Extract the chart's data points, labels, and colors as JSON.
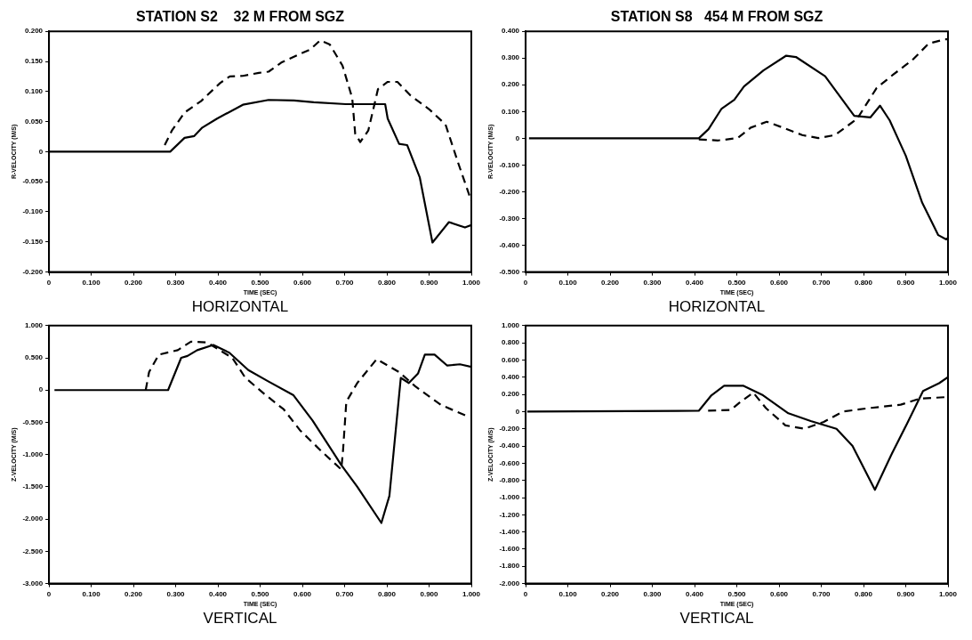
{
  "chart_data": [
    {
      "type": "line",
      "title": "STATION S2    32 M FROM SGZ",
      "subtitle": "HORIZONTAL",
      "xlabel": "TIME (SEC)",
      "ylabel": "R-VELOCITY (M/S)",
      "xlim": [
        0,
        1
      ],
      "xticks": [
        {
          "value": 0,
          "label": "0"
        },
        {
          "value": 0.1,
          "label": "0.100"
        },
        {
          "value": 0.2,
          "label": "0.200"
        },
        {
          "value": 0.3,
          "label": "0.300"
        },
        {
          "value": 0.4,
          "label": "0.400"
        },
        {
          "value": 0.5,
          "label": "0.500"
        },
        {
          "value": 0.6,
          "label": "0.600"
        },
        {
          "value": 0.7,
          "label": "0.700"
        },
        {
          "value": 0.8,
          "label": "0.800"
        },
        {
          "value": 0.9,
          "label": "0.900"
        },
        {
          "value": 1,
          "label": "1.000"
        }
      ],
      "ylim": [
        -0.2,
        0.2
      ],
      "yticks": [
        {
          "value": -0.2,
          "label": "-0.200"
        },
        {
          "value": -0.15,
          "label": "-0.150"
        },
        {
          "value": -0.1,
          "label": "-0.100"
        },
        {
          "value": -0.05,
          "label": "-0.050"
        },
        {
          "value": 0,
          "label": "0"
        },
        {
          "value": 0.05,
          "label": "0.050"
        },
        {
          "value": 0.1,
          "label": "0.100"
        },
        {
          "value": 0.15,
          "label": "0.150"
        },
        {
          "value": 0.2,
          "label": "0.200"
        }
      ],
      "series": [
        {
          "color": "#000000",
          "line_style": "solid",
          "x": [
            0,
            0.26,
            0.287,
            0.321,
            0.344,
            0.363,
            0.398,
            0.459,
            0.52,
            0.58,
            0.627,
            0.703,
            0.796,
            0.802,
            0.829,
            0.848,
            0.878,
            0.908,
            0.947,
            0.985,
            1
          ],
          "values": [
            0,
            0,
            0,
            0.023,
            0.026,
            0.04,
            0.055,
            0.078,
            0.086,
            0.085,
            0.082,
            0.079,
            0.079,
            0.055,
            0.013,
            0.011,
            -0.043,
            -0.151,
            -0.117,
            -0.126,
            -0.122
          ]
        },
        {
          "color": "#000000",
          "line_style": "dashed",
          "x": [
            0.274,
            0.291,
            0.321,
            0.36,
            0.405,
            0.428,
            0.459,
            0.497,
            0.52,
            0.55,
            0.596,
            0.619,
            0.642,
            0.665,
            0.695,
            0.718,
            0.725,
            0.737,
            0.756,
            0.779,
            0.802,
            0.825,
            0.855,
            0.901,
            0.939,
            0.969,
            1
          ],
          "values": [
            0.011,
            0.035,
            0.065,
            0.084,
            0.114,
            0.125,
            0.126,
            0.131,
            0.133,
            0.148,
            0.163,
            0.17,
            0.185,
            0.178,
            0.143,
            0.089,
            0.03,
            0.016,
            0.035,
            0.104,
            0.116,
            0.116,
            0.094,
            0.07,
            0.045,
            -0.019,
            -0.082
          ]
        }
      ]
    },
    {
      "type": "line",
      "title": "STATION S8   454 M FROM SGZ",
      "subtitle": "HORIZONTAL",
      "xlabel": "TIME (SEC)",
      "ylabel": "R-VELOCITY (M/S)",
      "xlim": [
        0,
        1
      ],
      "xticks": [
        {
          "value": 0,
          "label": "0"
        },
        {
          "value": 0.1,
          "label": "0.100"
        },
        {
          "value": 0.2,
          "label": "0.200"
        },
        {
          "value": 0.3,
          "label": "0.300"
        },
        {
          "value": 0.4,
          "label": "0.400"
        },
        {
          "value": 0.5,
          "label": "0.500"
        },
        {
          "value": 0.6,
          "label": "0.600"
        },
        {
          "value": 0.7,
          "label": "0.700"
        },
        {
          "value": 0.8,
          "label": "0.800"
        },
        {
          "value": 0.9,
          "label": "0.900"
        },
        {
          "value": 1,
          "label": "1.000"
        }
      ],
      "ylim": [
        -0.5,
        0.4
      ],
      "yticks": [
        {
          "value": -0.5,
          "label": "-0.500"
        },
        {
          "value": -0.4,
          "label": "-0.400"
        },
        {
          "value": -0.3,
          "label": "-0.300"
        },
        {
          "value": -0.2,
          "label": "-0.200"
        },
        {
          "value": -0.1,
          "label": "-0.100"
        },
        {
          "value": 0,
          "label": "0"
        },
        {
          "value": 0.1,
          "label": "0.100"
        },
        {
          "value": 0.2,
          "label": "0.200"
        },
        {
          "value": 0.3,
          "label": "0.300"
        },
        {
          "value": 0.4,
          "label": "0.400"
        }
      ],
      "series": [
        {
          "color": "#000000",
          "line_style": "solid",
          "x": [
            0.008,
            0.41,
            0.433,
            0.464,
            0.494,
            0.517,
            0.563,
            0.617,
            0.64,
            0.709,
            0.778,
            0.816,
            0.839,
            0.862,
            0.9,
            0.939,
            0.977,
            0.996,
            1
          ],
          "values": [
            0,
            0,
            0.034,
            0.111,
            0.144,
            0.194,
            0.254,
            0.309,
            0.304,
            0.232,
            0.084,
            0.078,
            0.122,
            0.067,
            -0.065,
            -0.241,
            -0.362,
            -0.378,
            -0.373
          ]
        },
        {
          "color": "#000000",
          "line_style": "dashed",
          "x": [
            0.41,
            0.456,
            0.502,
            0.533,
            0.571,
            0.609,
            0.655,
            0.693,
            0.732,
            0.785,
            0.831,
            0.87,
            0.916,
            0.954,
            0.992,
            1
          ],
          "values": [
            -0.004,
            -0.008,
            0.001,
            0.04,
            0.062,
            0.04,
            0.012,
            0.001,
            0.012,
            0.073,
            0.188,
            0.238,
            0.293,
            0.354,
            0.37,
            0.37
          ]
        }
      ]
    },
    {
      "type": "line",
      "subtitle": "VERTICAL",
      "xlabel": "TIME (SEC)",
      "ylabel": "Z-VELOCITY (M/S)",
      "xlim": [
        0,
        1
      ],
      "xticks": [
        {
          "value": 0,
          "label": "0"
        },
        {
          "value": 0.1,
          "label": "0.100"
        },
        {
          "value": 0.2,
          "label": "0.200"
        },
        {
          "value": 0.3,
          "label": "0.300"
        },
        {
          "value": 0.4,
          "label": "0.400"
        },
        {
          "value": 0.5,
          "label": "0.500"
        },
        {
          "value": 0.6,
          "label": "0.600"
        },
        {
          "value": 0.7,
          "label": "0.700"
        },
        {
          "value": 0.8,
          "label": "0.800"
        },
        {
          "value": 0.9,
          "label": "0.900"
        },
        {
          "value": 1,
          "label": "1.000"
        }
      ],
      "ylim": [
        -3,
        1
      ],
      "yticks": [
        {
          "value": -3,
          "label": "-3.000"
        },
        {
          "value": -2.5,
          "label": "-2.500"
        },
        {
          "value": -2,
          "label": "-2.000"
        },
        {
          "value": -1.5,
          "label": "-1.500"
        },
        {
          "value": -1,
          "label": "-1.000"
        },
        {
          "value": -0.5,
          "label": "-0.500"
        },
        {
          "value": 0,
          "label": "0"
        },
        {
          "value": 0.5,
          "label": "0.500"
        },
        {
          "value": 1,
          "label": "1.000"
        }
      ],
      "series": [
        {
          "color": "#000000",
          "line_style": "solid",
          "x": [
            0.013,
            0.282,
            0.313,
            0.328,
            0.351,
            0.389,
            0.427,
            0.472,
            0.518,
            0.579,
            0.624,
            0.692,
            0.73,
            0.787,
            0.806,
            0.833,
            0.852,
            0.874,
            0.89,
            0.913,
            0.943,
            0.973,
            1
          ],
          "values": [
            0,
            0,
            0.5,
            0.53,
            0.62,
            0.7,
            0.58,
            0.31,
            0.14,
            -0.08,
            -0.47,
            -1.16,
            -1.5,
            -2.06,
            -1.64,
            0.19,
            0.11,
            0.26,
            0.55,
            0.55,
            0.38,
            0.4,
            0.36
          ]
        },
        {
          "color": "#000000",
          "line_style": "dashed",
          "x": [
            0.229,
            0.237,
            0.26,
            0.305,
            0.336,
            0.374,
            0.434,
            0.465,
            0.51,
            0.556,
            0.594,
            0.647,
            0.692,
            0.696,
            0.704,
            0.73,
            0.776,
            0.829,
            0.867,
            0.928,
            0.996
          ],
          "values": [
            0,
            0.28,
            0.55,
            0.62,
            0.75,
            0.74,
            0.5,
            0.19,
            -0.06,
            -0.3,
            -0.62,
            -0.96,
            -1.23,
            -0.96,
            -0.18,
            0.11,
            0.48,
            0.28,
            0.06,
            -0.23,
            -0.42
          ]
        }
      ]
    },
    {
      "type": "line",
      "subtitle": "VERTICAL",
      "xlabel": "TIME (SEC)",
      "ylabel": "Z-VELOCITY (M/S)",
      "xlim": [
        0,
        1
      ],
      "xticks": [
        {
          "value": 0,
          "label": "0"
        },
        {
          "value": 0.1,
          "label": "0.100"
        },
        {
          "value": 0.2,
          "label": "0.200"
        },
        {
          "value": 0.3,
          "label": "0.300"
        },
        {
          "value": 0.4,
          "label": "0.400"
        },
        {
          "value": 0.5,
          "label": "0.500"
        },
        {
          "value": 0.6,
          "label": "0.600"
        },
        {
          "value": 0.7,
          "label": "0.700"
        },
        {
          "value": 0.8,
          "label": "0.800"
        },
        {
          "value": 0.9,
          "label": "0.900"
        },
        {
          "value": 1,
          "label": "1.000"
        }
      ],
      "ylim": [
        -2,
        1
      ],
      "yticks": [
        {
          "value": -2,
          "label": "-2.000"
        },
        {
          "value": -1.8,
          "label": "-1.800"
        },
        {
          "value": -1.6,
          "label": "-1.600"
        },
        {
          "value": -1.4,
          "label": "-1.400"
        },
        {
          "value": -1.2,
          "label": "-1.200"
        },
        {
          "value": -1,
          "label": "-1.000"
        },
        {
          "value": -0.8,
          "label": "-0.800"
        },
        {
          "value": -0.6,
          "label": "-0.600"
        },
        {
          "value": -0.4,
          "label": "-0.400"
        },
        {
          "value": -0.2,
          "label": "-0.200"
        },
        {
          "value": 0,
          "label": "0"
        },
        {
          "value": 0.2,
          "label": "0.200"
        },
        {
          "value": 0.4,
          "label": "0.400"
        },
        {
          "value": 0.6,
          "label": "0.600"
        },
        {
          "value": 0.8,
          "label": "0.800"
        },
        {
          "value": 1,
          "label": "1.000"
        }
      ],
      "series": [
        {
          "color": "#000000",
          "line_style": "solid",
          "x": [
            0.004,
            0.41,
            0.44,
            0.47,
            0.516,
            0.562,
            0.622,
            0.675,
            0.736,
            0.774,
            0.827,
            0.865,
            0.903,
            0.941,
            0.979,
            1
          ],
          "values": [
            0,
            0.01,
            0.19,
            0.3,
            0.3,
            0.19,
            -0.02,
            -0.11,
            -0.2,
            -0.4,
            -0.91,
            -0.51,
            -0.14,
            0.24,
            0.33,
            0.4
          ]
        },
        {
          "color": "#000000",
          "line_style": "dashed",
          "x": [
            0.432,
            0.486,
            0.508,
            0.539,
            0.569,
            0.615,
            0.66,
            0.706,
            0.751,
            0.812,
            0.888,
            0.933,
            1
          ],
          "values": [
            0.01,
            0.02,
            0.11,
            0.22,
            0.04,
            -0.16,
            -0.2,
            -0.12,
            0,
            0.04,
            0.08,
            0.15,
            0.17
          ]
        }
      ]
    }
  ]
}
